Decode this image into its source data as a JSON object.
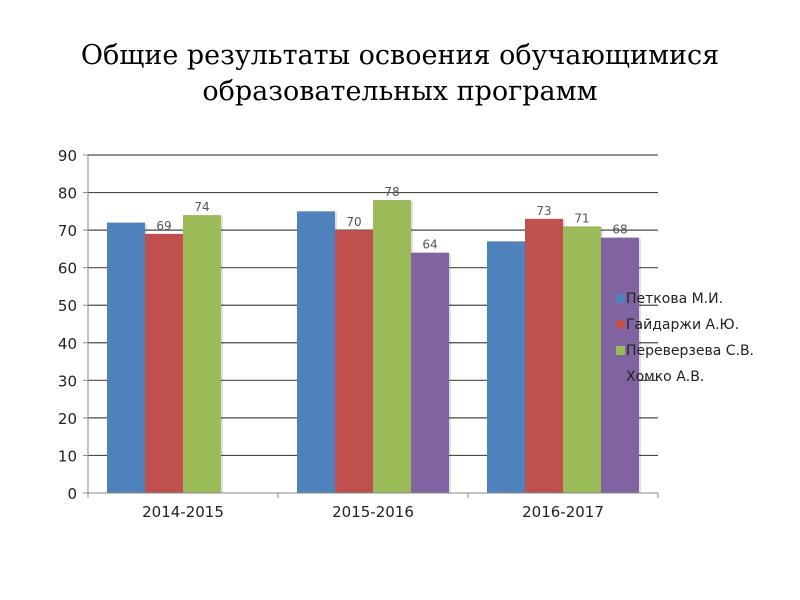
{
  "chart_data": {
    "type": "bar",
    "title_line1": "Общие результаты освоения обучающимися",
    "title_line2": "образовательных программ",
    "categories": [
      "2014-2015",
      "2015-2016",
      "2016-2017"
    ],
    "ylim": [
      0,
      90
    ],
    "yticks": [
      0,
      10,
      20,
      30,
      40,
      50,
      60,
      70,
      80,
      90
    ],
    "grid": true,
    "legend_position": "right",
    "series": [
      {
        "name": "Петкова М.И.",
        "color": "#4F81BD",
        "values": [
          72,
          75,
          67
        ],
        "labels": [
          null,
          null,
          null
        ]
      },
      {
        "name": "Гайдаржи А.Ю.",
        "color": "#C0504D",
        "values": [
          69,
          70,
          73
        ],
        "labels": [
          "69",
          "70",
          "73"
        ]
      },
      {
        "name": "Переверзева С.В.",
        "color": "#9BBB59",
        "values": [
          74,
          78,
          71
        ],
        "labels": [
          "74",
          "78",
          "71"
        ]
      },
      {
        "name": "Хомко А.В.",
        "color": "#8064A2",
        "values": [
          null,
          64,
          68
        ],
        "labels": [
          null,
          "64",
          "68"
        ]
      }
    ]
  }
}
